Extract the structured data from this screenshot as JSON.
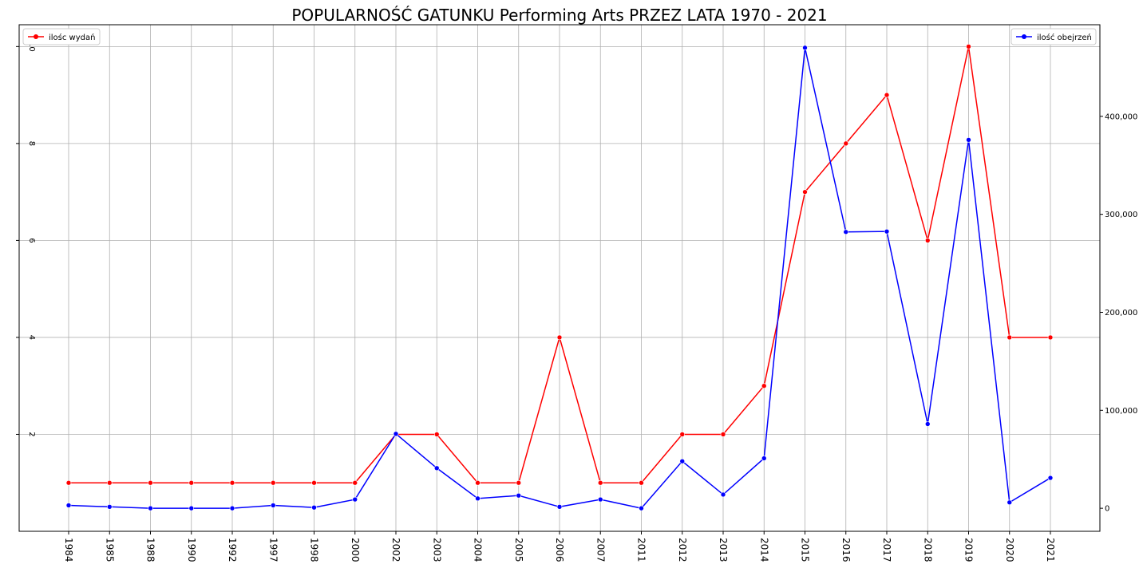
{
  "chart_data": {
    "type": "line",
    "title": "POPULARNOŚĆ GATUNKU Performing Arts PRZEZ LATA 1970 - 2021",
    "categories": [
      "1984",
      "1985",
      "1988",
      "1990",
      "1992",
      "1997",
      "1998",
      "2000",
      "2002",
      "2003",
      "2004",
      "2005",
      "2006",
      "2007",
      "2011",
      "2012",
      "2013",
      "2014",
      "2015",
      "2016",
      "2017",
      "2018",
      "2019",
      "2020",
      "2021"
    ],
    "series": [
      {
        "name": "ilośc wydań",
        "axis": "left",
        "color": "#ff0000",
        "values": [
          1,
          1,
          1,
          1,
          1,
          1,
          1,
          1,
          2,
          2,
          1,
          1,
          4,
          1,
          1,
          2,
          2,
          3,
          7,
          8,
          9,
          6,
          10,
          4,
          4
        ]
      },
      {
        "name": "ilość obejrzeń",
        "axis": "right",
        "color": "#0000ff",
        "values": [
          3000,
          1500,
          0,
          0,
          0,
          3000,
          800,
          9000,
          76000,
          41000,
          10000,
          13000,
          1500,
          9000,
          0,
          48000,
          14000,
          51000,
          470000,
          282000,
          282500,
          86000,
          376000,
          6000,
          31000
        ]
      }
    ],
    "y_left": {
      "ylim": [
        0,
        10.45
      ],
      "ticks": [
        2,
        4,
        6,
        8,
        10
      ],
      "tick_labels": [
        "2",
        "4",
        "6",
        "8",
        "10"
      ]
    },
    "y_right": {
      "ylim": [
        -23500,
        493500
      ],
      "ticks": [
        0,
        100000,
        200000,
        300000,
        400000
      ],
      "tick_labels": [
        "0",
        "100,000",
        "200,000",
        "300,000",
        "400,000"
      ]
    },
    "grid": true,
    "legend_left": {
      "placement": "top-left",
      "label": "ilośc wydań"
    },
    "legend_right": {
      "placement": "top-right",
      "label": "ilość obejrzeń"
    }
  }
}
